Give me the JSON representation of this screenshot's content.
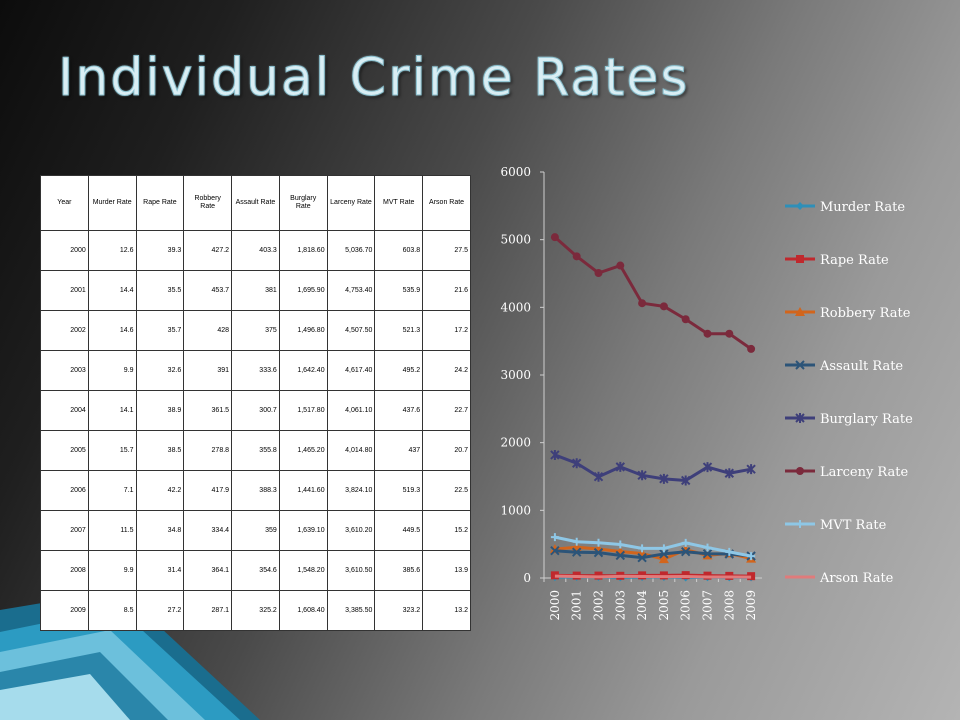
{
  "slide": {
    "title": "Individual Crime Rates"
  },
  "table": {
    "headers": [
      "Year",
      "Murder Rate",
      "Rape Rate",
      "Robbery Rate",
      "Assault Rate",
      "Burglary Rate",
      "Larceny Rate",
      "MVT Rate",
      "Arson Rate"
    ],
    "rows": [
      [
        "2000",
        "12.6",
        "39.3",
        "427.2",
        "403.3",
        "1,818.60",
        "5,036.70",
        "603.8",
        "27.5"
      ],
      [
        "2001",
        "14.4",
        "35.5",
        "453.7",
        "381",
        "1,695.90",
        "4,753.40",
        "535.9",
        "21.6"
      ],
      [
        "2002",
        "14.6",
        "35.7",
        "428",
        "375",
        "1,496.80",
        "4,507.50",
        "521.3",
        "17.2"
      ],
      [
        "2003",
        "9.9",
        "32.6",
        "391",
        "333.6",
        "1,642.40",
        "4,617.40",
        "495.2",
        "24.2"
      ],
      [
        "2004",
        "14.1",
        "38.9",
        "361.5",
        "300.7",
        "1,517.80",
        "4,061.10",
        "437.6",
        "22.7"
      ],
      [
        "2005",
        "15.7",
        "38.5",
        "278.8",
        "355.8",
        "1,465.20",
        "4,014.80",
        "437",
        "20.7"
      ],
      [
        "2006",
        "7.1",
        "42.2",
        "417.9",
        "388.3",
        "1,441.60",
        "3,824.10",
        "519.3",
        "22.5"
      ],
      [
        "2007",
        "11.5",
        "34.8",
        "334.4",
        "359",
        "1,639.10",
        "3,610.20",
        "449.5",
        "15.2"
      ],
      [
        "2008",
        "9.9",
        "31.4",
        "364.1",
        "354.6",
        "1,548.20",
        "3,610.50",
        "385.6",
        "13.9"
      ],
      [
        "2009",
        "8.5",
        "27.2",
        "287.1",
        "325.2",
        "1,608.40",
        "3,385.50",
        "323.2",
        "13.2"
      ]
    ]
  },
  "chart_data": {
    "type": "line",
    "categories": [
      "2000",
      "2001",
      "2002",
      "2003",
      "2004",
      "2005",
      "2006",
      "2007",
      "2008",
      "2009"
    ],
    "ylim": [
      0,
      6000
    ],
    "yticks": [
      "0",
      "1000",
      "2000",
      "3000",
      "4000",
      "5000",
      "6000"
    ],
    "grid": false,
    "legend_position": "right",
    "series": [
      {
        "name": "Murder Rate",
        "color": "#2e8fb8",
        "marker": "diamond",
        "values": [
          12.6,
          14.4,
          14.6,
          9.9,
          14.1,
          15.7,
          7.1,
          11.5,
          9.9,
          8.5
        ]
      },
      {
        "name": "Rape Rate",
        "color": "#c0282d",
        "marker": "square",
        "values": [
          39.3,
          35.5,
          35.7,
          32.6,
          38.9,
          38.5,
          42.2,
          34.8,
          31.4,
          27.2
        ]
      },
      {
        "name": "Robbery Rate",
        "color": "#d2651c",
        "marker": "triangle",
        "values": [
          427.2,
          453.7,
          428,
          391,
          361.5,
          278.8,
          417.9,
          334.4,
          364.1,
          287.1
        ]
      },
      {
        "name": "Assault Rate",
        "color": "#2c5478",
        "marker": "x",
        "values": [
          403.3,
          381,
          375,
          333.6,
          300.7,
          355.8,
          388.3,
          359,
          354.6,
          325.2
        ]
      },
      {
        "name": "Burglary Rate",
        "color": "#3e3f7a",
        "marker": "star",
        "values": [
          1818.6,
          1695.9,
          1496.8,
          1642.4,
          1517.8,
          1465.2,
          1441.6,
          1639.1,
          1548.2,
          1608.4
        ]
      },
      {
        "name": "Larceny Rate",
        "color": "#7b2a3c",
        "marker": "circle",
        "values": [
          5036.7,
          4753.4,
          4507.5,
          4617.4,
          4061.1,
          4014.8,
          3824.1,
          3610.2,
          3610.5,
          3385.5
        ]
      },
      {
        "name": "MVT Rate",
        "color": "#8ec7e6",
        "marker": "plus",
        "values": [
          603.8,
          535.9,
          521.3,
          495.2,
          437.6,
          437,
          519.3,
          449.5,
          385.6,
          323.2
        ]
      },
      {
        "name": "Arson Rate",
        "color": "#e07b7b",
        "marker": "none",
        "values": [
          27.5,
          21.6,
          17.2,
          24.2,
          22.7,
          20.7,
          22.5,
          15.2,
          13.9,
          13.2
        ]
      }
    ]
  }
}
